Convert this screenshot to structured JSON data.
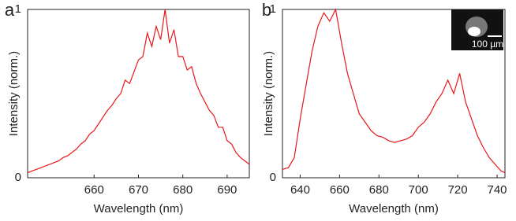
{
  "chart_data": [
    {
      "type": "line",
      "panel_label": "a",
      "x_label": "Wavelength (nm)",
      "y_label": "Intensity (norm.)",
      "xlim": [
        645,
        695
      ],
      "ylim": [
        0,
        1
      ],
      "xticks": [
        660,
        670,
        680,
        690
      ],
      "yticks": [
        0,
        1
      ],
      "series": [
        {
          "color": "#e8161b",
          "x": [
            645,
            646,
            647,
            648,
            649,
            650,
            651,
            652,
            653,
            654,
            655,
            656,
            657,
            658,
            659,
            660,
            661,
            662,
            663,
            664,
            665,
            666,
            667,
            668,
            669,
            670,
            671,
            672,
            673,
            674,
            675,
            676,
            677,
            678,
            679,
            680,
            681,
            682,
            683,
            684,
            685,
            686,
            687,
            688,
            689,
            690,
            691,
            692,
            693,
            694,
            695
          ],
          "values": [
            0.03,
            0.04,
            0.05,
            0.06,
            0.07,
            0.08,
            0.09,
            0.1,
            0.12,
            0.13,
            0.15,
            0.17,
            0.2,
            0.22,
            0.26,
            0.28,
            0.32,
            0.36,
            0.4,
            0.43,
            0.47,
            0.5,
            0.58,
            0.56,
            0.63,
            0.7,
            0.72,
            0.86,
            0.78,
            0.9,
            0.82,
            1.0,
            0.8,
            0.88,
            0.72,
            0.72,
            0.64,
            0.66,
            0.56,
            0.5,
            0.45,
            0.4,
            0.37,
            0.3,
            0.3,
            0.22,
            0.2,
            0.15,
            0.12,
            0.1,
            0.08
          ]
        }
      ]
    },
    {
      "type": "line",
      "panel_label": "b",
      "x_label": "Wavelength (nm)",
      "y_label": "Intensity (norm.)",
      "inset_label": "100 µm",
      "xlim": [
        631,
        744
      ],
      "ylim": [
        0,
        1
      ],
      "xticks": [
        640,
        660,
        680,
        700,
        720,
        740
      ],
      "yticks": [
        0,
        1
      ],
      "series": [
        {
          "color": "#e8161b",
          "x": [
            631,
            634,
            637,
            640,
            643,
            646,
            649,
            652,
            655,
            658,
            661,
            664,
            667,
            670,
            673,
            676,
            679,
            682,
            685,
            688,
            691,
            694,
            697,
            700,
            703,
            706,
            709,
            712,
            715,
            718,
            721,
            724,
            727,
            730,
            733,
            736,
            739,
            742,
            744
          ],
          "values": [
            0.05,
            0.06,
            0.12,
            0.35,
            0.55,
            0.75,
            0.9,
            0.98,
            0.93,
            1.0,
            0.8,
            0.62,
            0.5,
            0.38,
            0.33,
            0.28,
            0.25,
            0.24,
            0.22,
            0.21,
            0.22,
            0.23,
            0.25,
            0.3,
            0.33,
            0.38,
            0.45,
            0.5,
            0.58,
            0.5,
            0.62,
            0.45,
            0.35,
            0.25,
            0.18,
            0.12,
            0.08,
            0.04,
            0.03
          ]
        }
      ]
    }
  ]
}
